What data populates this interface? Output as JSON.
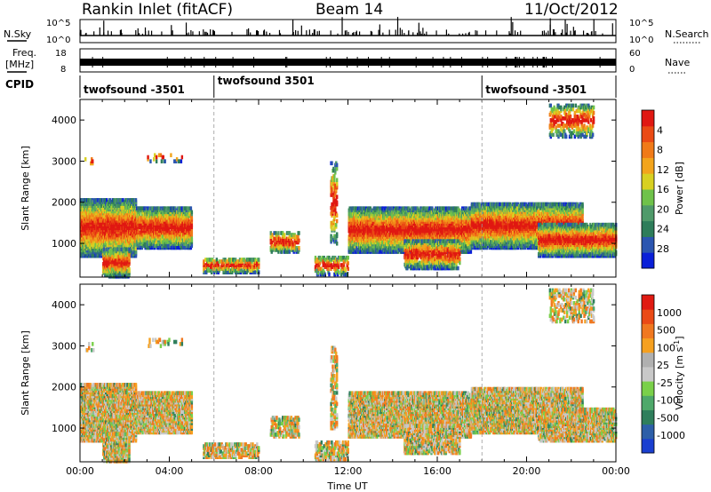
{
  "header": {
    "station": "Rankin Inlet (fitACF)",
    "beam": "Beam 14",
    "date": "11/Oct/2012"
  },
  "strip_nsky": {
    "left_label": "N.Sky",
    "right_label": "N.Search",
    "left_ticks": [
      "10^5",
      "10^0"
    ],
    "right_ticks": [
      "10^5",
      "10^0"
    ]
  },
  "strip_freq": {
    "left_label_line1": "Freq.",
    "left_label_line2": "[MHz]",
    "right_label": "Nave",
    "left_ticks": [
      "18",
      "8"
    ],
    "right_ticks": [
      "60",
      "0"
    ]
  },
  "strip_cpid": {
    "label": "CPID",
    "segments": [
      {
        "start_hour": 0,
        "name": "twofsound -3501"
      },
      {
        "start_hour": 6,
        "name": "twofsound 3501"
      },
      {
        "start_hour": 18,
        "name": "twofsound -3501"
      }
    ]
  },
  "chart_data": [
    {
      "type": "heatmap",
      "title": "",
      "xlabel": "",
      "ylabel": "Slant Range [km]",
      "xlim": [
        0,
        24
      ],
      "ylim": [
        180,
        4500
      ],
      "x_ticks": [],
      "y_ticks": [
        "1000",
        "2000",
        "3000",
        "4000"
      ],
      "y_tick_values": [
        1000,
        2000,
        3000,
        4000
      ],
      "dashed_boundaries_hours": [
        6,
        18
      ],
      "colorbar": {
        "label": "Power [dB]",
        "range": [
          0,
          32
        ],
        "ticks": [
          "4",
          "8",
          "12",
          "16",
          "20",
          "24",
          "28"
        ],
        "colors": [
          "#0a1fd8",
          "#2b55b0",
          "#2e7d5a",
          "#4f9a6a",
          "#6fc24a",
          "#d8d022",
          "#f2a41c",
          "#f07a18",
          "#ea4a14",
          "#e01812"
        ]
      }
    },
    {
      "type": "heatmap",
      "title": "",
      "xlabel": "Time UT",
      "ylabel": "Slant Range [km]",
      "xlim": [
        0,
        24
      ],
      "ylim": [
        180,
        4500
      ],
      "x_ticks": [
        "00:00",
        "04:00",
        "08:00",
        "12:00",
        "16:00",
        "20:00",
        "00:00"
      ],
      "x_tick_hours": [
        0,
        4,
        8,
        12,
        16,
        20,
        24
      ],
      "y_ticks": [
        "1000",
        "2000",
        "3000",
        "4000"
      ],
      "y_tick_values": [
        1000,
        2000,
        3000,
        4000
      ],
      "dashed_boundaries_hours": [
        6,
        18
      ],
      "colorbar": {
        "label": "Velocity [m s^-1]",
        "ticks": [
          "1000",
          "500",
          "100",
          "25",
          "-25",
          "-100",
          "-500",
          "-1000"
        ],
        "colors": [
          "#1a3fd0",
          "#2d5fa8",
          "#2f7e5c",
          "#4ea86a",
          "#7ad04a",
          "#c8c8c8",
          "#b0b0b0",
          "#f5a020",
          "#f07820",
          "#ea4a16",
          "#e01a12"
        ]
      }
    }
  ]
}
